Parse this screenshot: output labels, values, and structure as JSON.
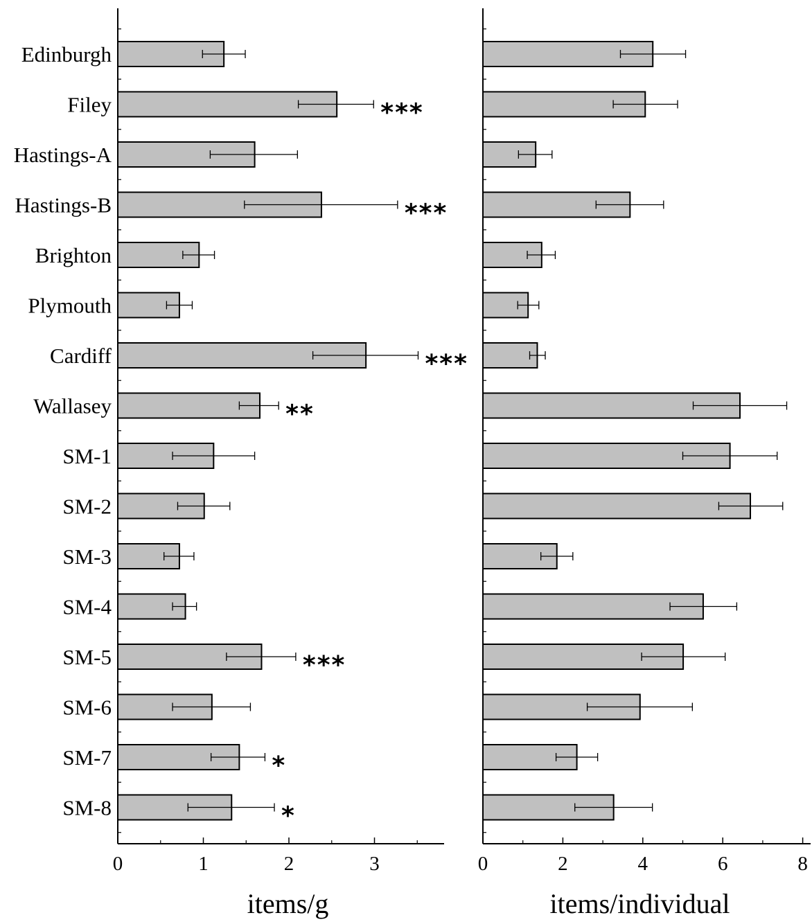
{
  "chart_data": [
    {
      "type": "bar",
      "orientation": "horizontal",
      "categories": [
        "Edinburgh",
        "Filey",
        "Hastings-A",
        "Hastings-B",
        "Brighton",
        "Plymouth",
        "Cardiff",
        "Wallasey",
        "SM-1",
        "SM-2",
        "SM-3",
        "SM-4",
        "SM-5",
        "SM-6",
        "SM-7",
        "SM-8"
      ],
      "values": [
        1.24,
        2.56,
        1.6,
        2.38,
        0.95,
        0.72,
        2.9,
        1.66,
        1.12,
        1.01,
        0.72,
        0.79,
        1.68,
        1.1,
        1.42,
        1.33
      ],
      "error_low": [
        0.99,
        2.11,
        1.08,
        1.48,
        0.76,
        0.57,
        2.28,
        1.42,
        0.64,
        0.7,
        0.54,
        0.64,
        1.27,
        0.64,
        1.09,
        0.82
      ],
      "error_high": [
        1.49,
        2.99,
        2.1,
        3.27,
        1.13,
        0.87,
        3.51,
        1.88,
        1.6,
        1.31,
        0.89,
        0.92,
        2.08,
        1.55,
        1.72,
        1.83
      ],
      "significance": [
        "",
        "***",
        "",
        "***",
        "",
        "",
        "***",
        "**",
        "",
        "",
        "",
        "",
        "***",
        "",
        "*",
        "*"
      ],
      "xlabel": "items/g",
      "ylabel": "",
      "xlim": [
        0,
        3.8
      ],
      "xticks": [
        "0",
        "1",
        "2",
        "3"
      ],
      "grid": false,
      "bar_color": "#c0c0c0",
      "edge_color": "#000000"
    },
    {
      "type": "bar",
      "orientation": "horizontal",
      "categories": [
        "Edinburgh",
        "Filey",
        "Hastings-A",
        "Hastings-B",
        "Brighton",
        "Plymouth",
        "Cardiff",
        "Wallasey",
        "SM-1",
        "SM-2",
        "SM-3",
        "SM-4",
        "SM-5",
        "SM-6",
        "SM-7",
        "SM-8"
      ],
      "values": [
        4.25,
        4.06,
        1.32,
        3.68,
        1.47,
        1.13,
        1.36,
        6.43,
        6.18,
        6.69,
        1.85,
        5.51,
        5.01,
        3.93,
        2.35,
        3.27
      ],
      "error_low": [
        3.44,
        3.26,
        0.89,
        2.83,
        1.11,
        0.87,
        1.17,
        5.26,
        5.0,
        5.9,
        1.45,
        4.68,
        3.97,
        2.61,
        1.83,
        2.3
      ],
      "error_high": [
        5.07,
        4.87,
        1.73,
        4.52,
        1.81,
        1.4,
        1.56,
        7.6,
        7.36,
        7.5,
        2.25,
        6.35,
        6.06,
        5.24,
        2.87,
        4.24
      ],
      "xlabel": "items/individual",
      "ylabel": "",
      "xlim": [
        0,
        8.2
      ],
      "xticks": [
        "0",
        "2",
        "4",
        "6",
        "8"
      ],
      "grid": false,
      "bar_color": "#c0c0c0",
      "edge_color": "#000000"
    }
  ]
}
